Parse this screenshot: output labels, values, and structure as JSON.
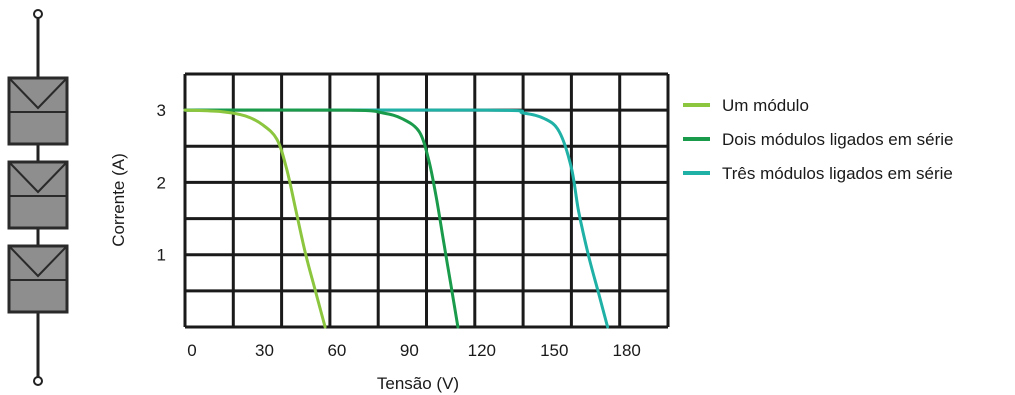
{
  "colors": {
    "series_1": "#8cc63f",
    "series_2": "#1a9b4b",
    "series_3": "#1fb0a6",
    "grid": "#1a1a1a",
    "module_fill": "#8e8e8e",
    "module_stroke": "#2a2a2a"
  },
  "diagram": {
    "module_count": 3,
    "terminal_icon": "circle-terminal"
  },
  "chart_data": {
    "type": "line",
    "xlabel": "Tensão (V)",
    "ylabel": "Corrente (A)",
    "xlim": [
      0,
      200
    ],
    "ylim": [
      0,
      3.5
    ],
    "x_ticks": [
      "0",
      "30",
      "60",
      "90",
      "120",
      "150",
      "180"
    ],
    "y_ticks": [
      "1",
      "2",
      "3"
    ],
    "grid": true,
    "legend_position": "right",
    "series": [
      {
        "name": "Um módulo",
        "points": [
          [
            0,
            3.0
          ],
          [
            15,
            2.98
          ],
          [
            25,
            2.92
          ],
          [
            32,
            2.8
          ],
          [
            38,
            2.6
          ],
          [
            42,
            2.2
          ],
          [
            46,
            1.6
          ],
          [
            50,
            1.0
          ],
          [
            54,
            0.5
          ],
          [
            58,
            0.0
          ]
        ]
      },
      {
        "name": "Dois módulos ligados em série",
        "points": [
          [
            0,
            3.0
          ],
          [
            68,
            3.0
          ],
          [
            82,
            2.96
          ],
          [
            90,
            2.88
          ],
          [
            97,
            2.7
          ],
          [
            101,
            2.3
          ],
          [
            104,
            1.8
          ],
          [
            107,
            1.2
          ],
          [
            110,
            0.6
          ],
          [
            113,
            0.0
          ]
        ]
      },
      {
        "name": "Três módulos ligados em série",
        "points": [
          [
            0,
            3.0
          ],
          [
            125,
            3.0
          ],
          [
            140,
            2.96
          ],
          [
            149,
            2.88
          ],
          [
            155,
            2.7
          ],
          [
            160,
            2.2
          ],
          [
            163,
            1.6
          ],
          [
            167,
            1.0
          ],
          [
            171,
            0.5
          ],
          [
            175,
            0.0
          ]
        ]
      }
    ]
  }
}
